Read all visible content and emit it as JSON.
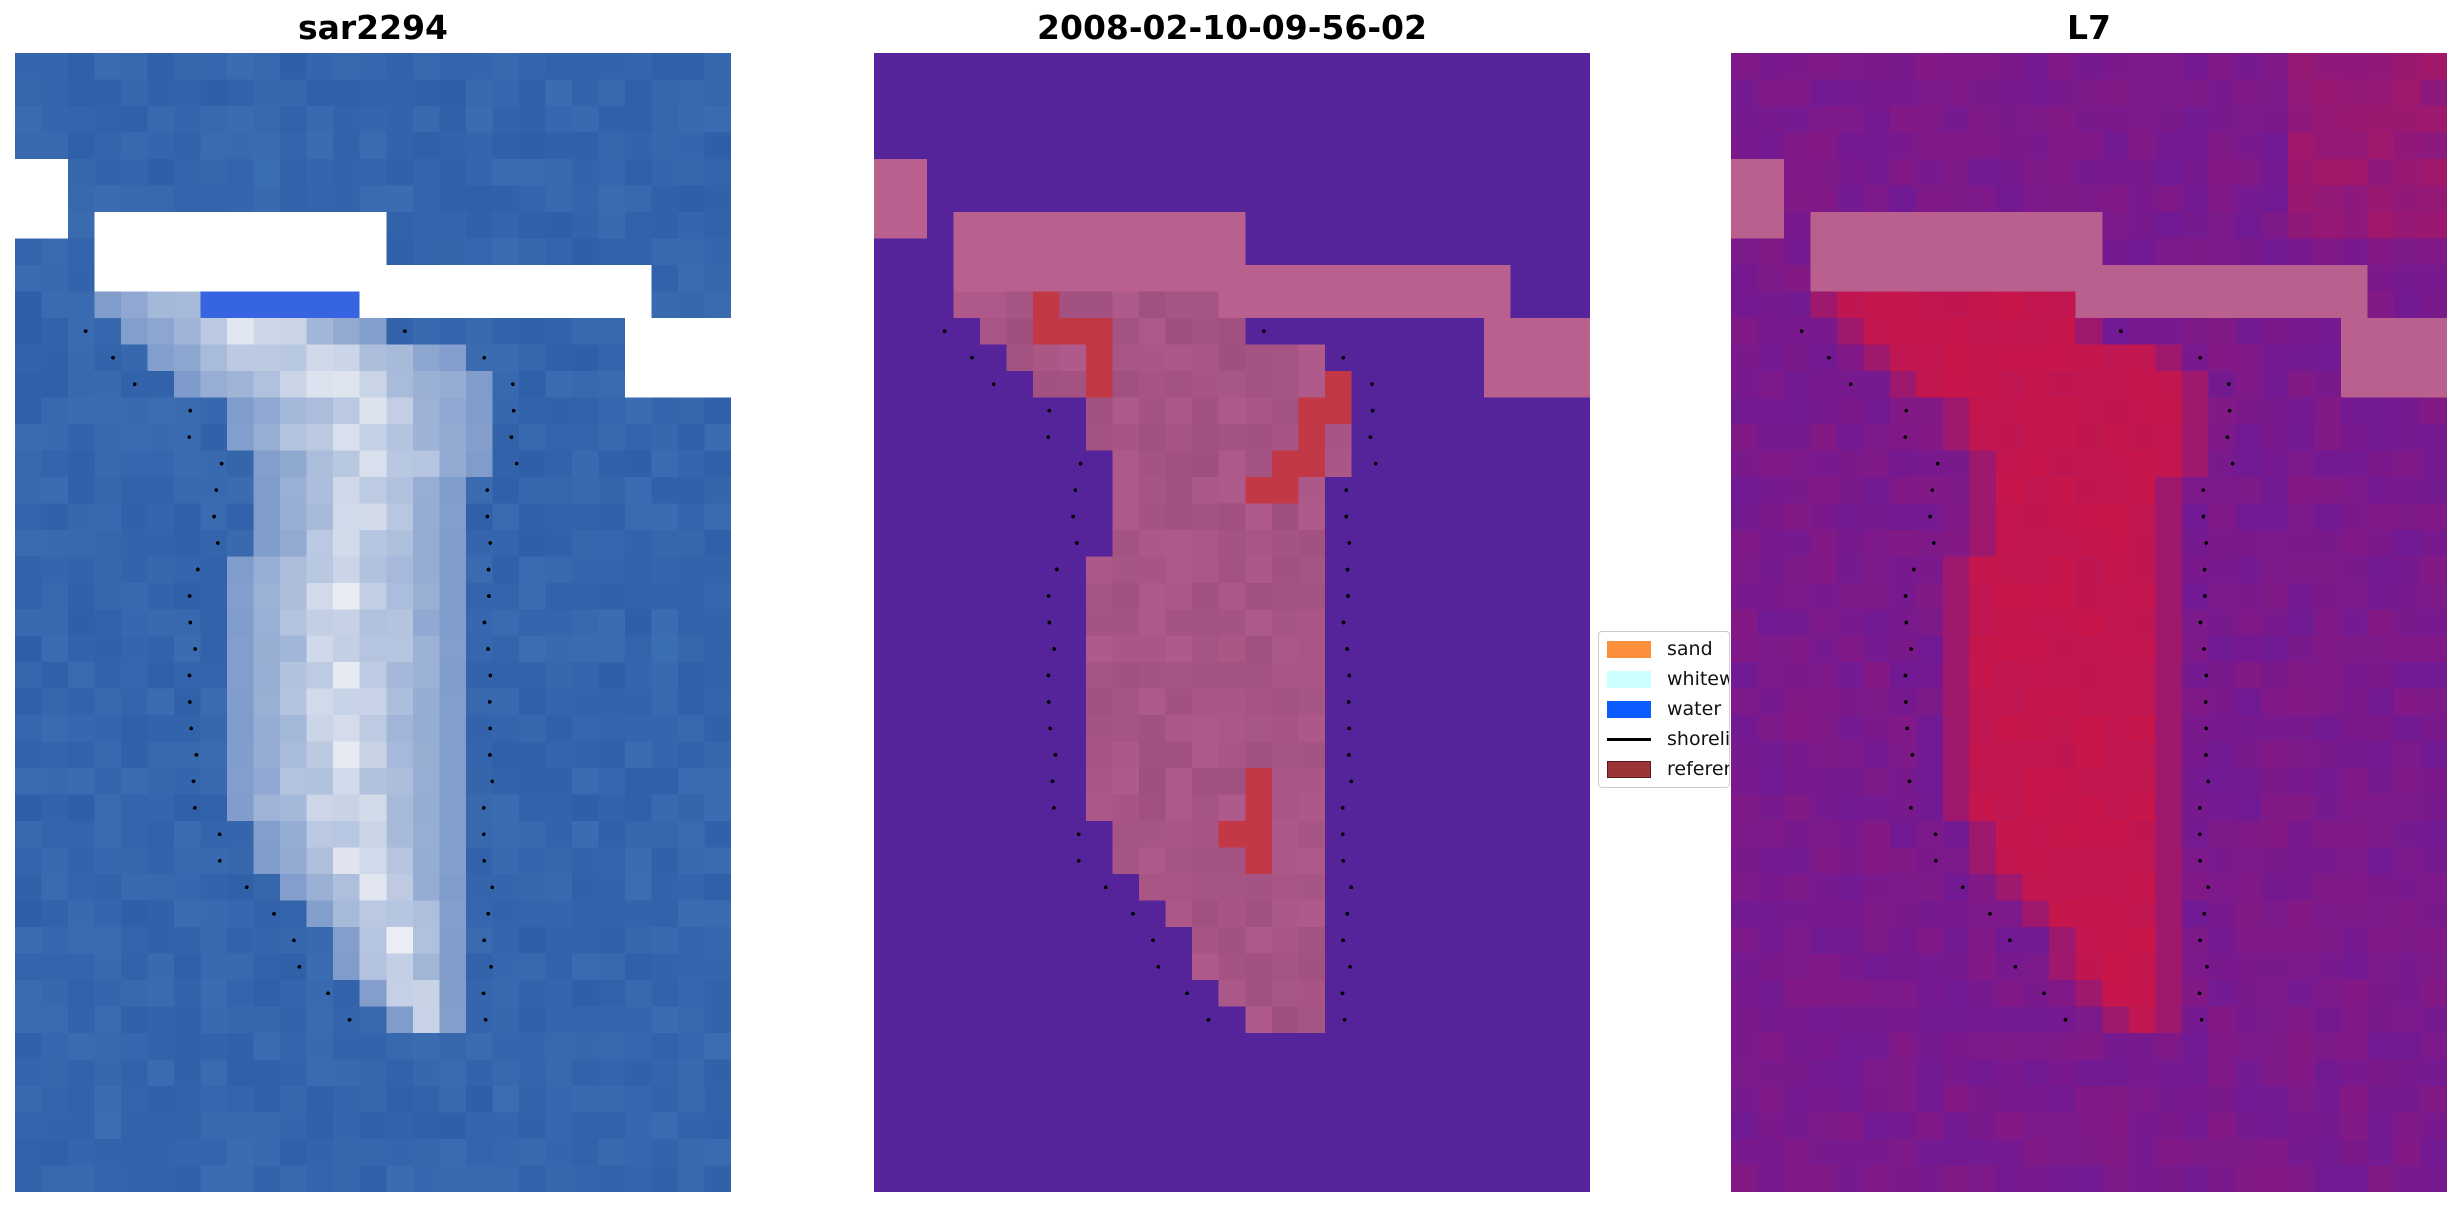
{
  "panels": [
    {
      "title": "sar2294"
    },
    {
      "title": "2008-02-10-09-56-02"
    },
    {
      "title": "L7"
    }
  ],
  "legend": {
    "items": [
      {
        "label": "sand",
        "kind": "patch",
        "color": "#fb8f3b"
      },
      {
        "label": "whitewater",
        "kind": "patch",
        "color": "#ccfffd"
      },
      {
        "label": "water",
        "kind": "patch",
        "color": "#0a5cff"
      },
      {
        "label": "shoreline",
        "kind": "line",
        "color": "#000000"
      },
      {
        "label": "reference",
        "kind": "patch",
        "color": "#9b3337"
      }
    ]
  },
  "colors": {
    "water_rgb": "#2f5fa8",
    "nodata": "#ffffff",
    "classified_background": "#55239a",
    "classified_cloud": "#b9608f",
    "classified_land": "#a0507f",
    "classified_reference": "#c23846",
    "probability_low": "#6a1a9a",
    "probability_high": "#c8164a"
  }
}
